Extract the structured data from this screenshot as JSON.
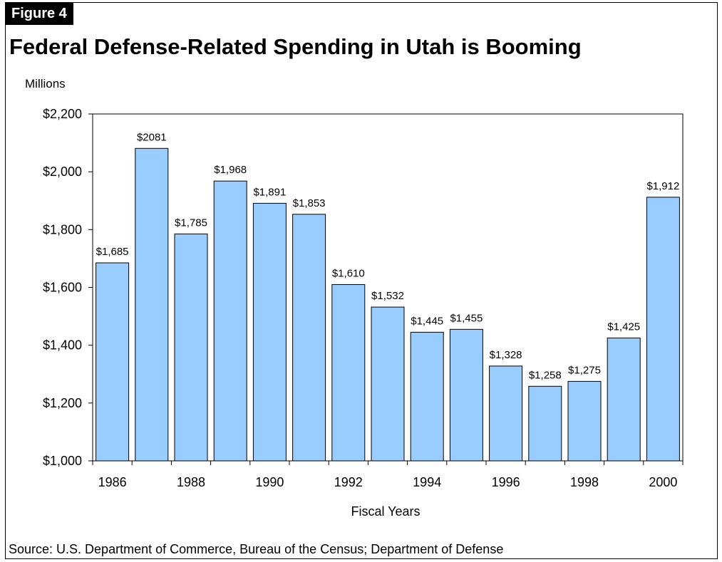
{
  "figure": {
    "label": "Figure 4",
    "source": "Source: U.S. Department of Commerce, Bureau of the Census; Department of Defense"
  },
  "chart_data": {
    "type": "bar",
    "title": "Federal Defense-Related Spending in Utah is Booming",
    "ylabel": "Millions",
    "xlabel": "Fiscal Years",
    "categories": [
      "1986",
      "1987",
      "1988",
      "1989",
      "1990",
      "1991",
      "1992",
      "1993",
      "1994",
      "1995",
      "1996",
      "1997",
      "1998",
      "1999",
      "2000"
    ],
    "values": [
      1685,
      2081,
      1785,
      1968,
      1891,
      1853,
      1610,
      1532,
      1445,
      1455,
      1328,
      1258,
      1275,
      1425,
      1912
    ],
    "data_labels": [
      "$1,685",
      "$2081",
      "$1,785",
      "$1,968",
      "$1,891",
      "$1,853",
      "$1,610",
      "$1,532",
      "$1,445",
      "$1,455",
      "$1,328",
      "$1,258",
      "$1,275",
      "$1,425",
      "$1,912"
    ],
    "x_tick_labels": [
      "1986",
      "",
      "1988",
      "",
      "1990",
      "",
      "1992",
      "",
      "1994",
      "",
      "1996",
      "",
      "1998",
      "",
      "2000"
    ],
    "ylim": [
      1000,
      2200
    ],
    "y_ticks": [
      1000,
      1200,
      1400,
      1600,
      1800,
      2000,
      2200
    ],
    "y_tick_labels": [
      "$1,000",
      "$1,200",
      "$1,400",
      "$1,600",
      "$1,800",
      "$2,000",
      "$2,200"
    ],
    "grid": false,
    "legend": "none",
    "colors": {
      "bar_fill": "#99ccff",
      "bar_stroke": "#000000",
      "axis": "#000000"
    }
  }
}
